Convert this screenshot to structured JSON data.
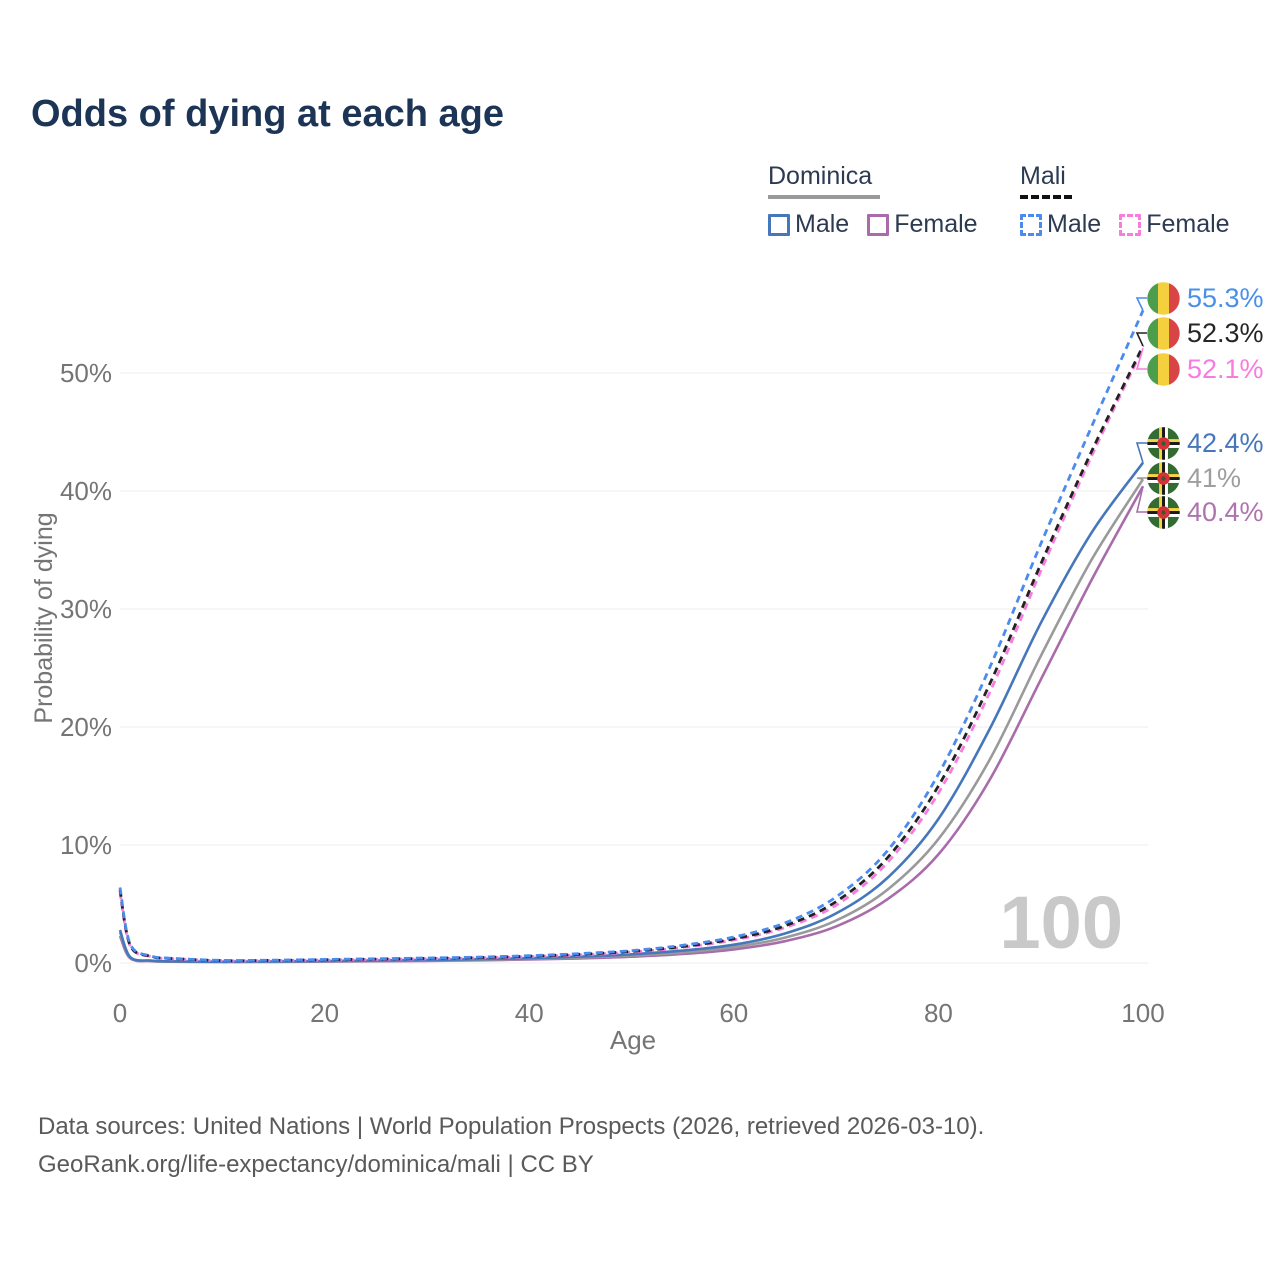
{
  "title": "Odds of dying at each age",
  "legend": {
    "groups": [
      {
        "label": "Dominica",
        "line_style": "solid",
        "line_color": "#9a9a9a",
        "items": [
          {
            "label": "Male",
            "color": "#4677bb",
            "dashed": false
          },
          {
            "label": "Female",
            "color": "#a96cab",
            "dashed": false
          }
        ]
      },
      {
        "label": "Mali",
        "line_style": "dashed",
        "line_color": "#111111",
        "items": [
          {
            "label": "Male",
            "color": "#4b8bee",
            "dashed": true
          },
          {
            "label": "Female",
            "color": "#f87be0",
            "dashed": true
          }
        ]
      }
    ]
  },
  "chart_data": {
    "type": "line",
    "title": "Odds of dying at each age",
    "xlabel": "Age",
    "ylabel": "Probability of dying",
    "xlim": [
      0,
      100
    ],
    "ylim_pct": [
      0,
      57
    ],
    "grid": true,
    "x_ticks": [
      {
        "value": 0,
        "label": "0"
      },
      {
        "value": 20,
        "label": "20"
      },
      {
        "value": 40,
        "label": "40"
      },
      {
        "value": 60,
        "label": "60"
      },
      {
        "value": 80,
        "label": "80"
      },
      {
        "value": 100,
        "label": "100"
      }
    ],
    "y_ticks": [
      {
        "value": 0,
        "label": "0%"
      },
      {
        "value": 10,
        "label": "10%"
      },
      {
        "value": 20,
        "label": "20%"
      },
      {
        "value": 30,
        "label": "30%"
      },
      {
        "value": 40,
        "label": "40%"
      },
      {
        "value": 50,
        "label": "50%"
      }
    ],
    "x": [
      0,
      1,
      3,
      5,
      10,
      15,
      20,
      25,
      30,
      35,
      40,
      45,
      50,
      55,
      60,
      65,
      70,
      75,
      80,
      85,
      90,
      95,
      100
    ],
    "series": [
      {
        "id": "dominica-female",
        "name": "Dominica Female",
        "color": "#a96cab",
        "dashed": false,
        "end_value_pct": 40.4,
        "values_pct": [
          2.3,
          0.4,
          0.16,
          0.11,
          0.08,
          0.09,
          0.12,
          0.15,
          0.18,
          0.23,
          0.3,
          0.39,
          0.53,
          0.76,
          1.15,
          1.85,
          3.1,
          5.4,
          9.2,
          15.5,
          24.0,
          32.5,
          40.4
        ]
      },
      {
        "id": "dominica",
        "name": "Dominica",
        "color": "#9a9a9a",
        "dashed": false,
        "end_value_pct": 41,
        "values_pct": [
          2.6,
          0.45,
          0.18,
          0.13,
          0.1,
          0.11,
          0.14,
          0.18,
          0.22,
          0.27,
          0.35,
          0.46,
          0.63,
          0.9,
          1.35,
          2.15,
          3.6,
          6.2,
          10.5,
          17.2,
          26.0,
          34.2,
          41.0
        ]
      },
      {
        "id": "dominica-male",
        "name": "Dominica Male",
        "color": "#4677bb",
        "dashed": false,
        "end_value_pct": 42.4,
        "values_pct": [
          2.8,
          0.5,
          0.2,
          0.14,
          0.11,
          0.13,
          0.17,
          0.21,
          0.26,
          0.32,
          0.41,
          0.54,
          0.74,
          1.05,
          1.55,
          2.5,
          4.2,
          7.2,
          12.2,
          19.8,
          28.8,
          36.5,
          42.4
        ]
      },
      {
        "id": "mali-female",
        "name": "Mali Female",
        "color": "#f87be0",
        "dashed": true,
        "end_value_pct": 52.1,
        "values_pct": [
          6.0,
          1.45,
          0.55,
          0.36,
          0.19,
          0.2,
          0.25,
          0.3,
          0.36,
          0.43,
          0.53,
          0.69,
          0.92,
          1.32,
          1.95,
          3.0,
          4.9,
          8.5,
          14.4,
          22.9,
          33.2,
          43.0,
          52.1
        ]
      },
      {
        "id": "mali",
        "name": "Mali",
        "color": "#222222",
        "dashed": true,
        "end_value_pct": 52.3,
        "values_pct": [
          6.2,
          1.5,
          0.57,
          0.38,
          0.2,
          0.22,
          0.27,
          0.33,
          0.39,
          0.46,
          0.57,
          0.74,
          0.98,
          1.4,
          2.05,
          3.15,
          5.2,
          8.9,
          15.0,
          23.6,
          33.8,
          43.4,
          52.3
        ]
      },
      {
        "id": "mali-male",
        "name": "Mali Male",
        "color": "#4b8bee",
        "dashed": true,
        "end_value_pct": 55.3,
        "values_pct": [
          6.4,
          1.6,
          0.6,
          0.4,
          0.22,
          0.24,
          0.3,
          0.36,
          0.42,
          0.5,
          0.62,
          0.8,
          1.05,
          1.5,
          2.2,
          3.4,
          5.6,
          9.5,
          16.0,
          25.0,
          35.5,
          45.5,
          55.3
        ]
      }
    ],
    "end_labels": [
      {
        "series": "mali-male",
        "text": "55.3%",
        "color": "#4a90e8",
        "flag": "mali"
      },
      {
        "series": "mali",
        "text": "52.3%",
        "color": "#262626",
        "flag": "mali"
      },
      {
        "series": "mali-female",
        "text": "52.1%",
        "color": "#f87be0",
        "flag": "mali"
      },
      {
        "series": "dominica-male",
        "text": "42.4%",
        "color": "#4677bb",
        "flag": "dominica"
      },
      {
        "series": "dominica",
        "text": "41%",
        "color": "#9e9e9e",
        "flag": "dominica"
      },
      {
        "series": "dominica-female",
        "text": "40.4%",
        "color": "#ad74ad",
        "flag": "dominica"
      }
    ],
    "legend_position": "top-right",
    "watermark": "100"
  },
  "flag_colors": {
    "mali": {
      "green": "#4c9e4c",
      "gold": "#f4d03f",
      "red": "#d94545"
    },
    "dominica": {
      "green": "#336b33",
      "yellow": "#f5d547",
      "black": "#1a1a1a",
      "white": "#ffffff",
      "red": "#d83038",
      "parrot": "#2f5d2f"
    }
  },
  "footer": {
    "line1": "Data sources: United Nations | World Population Prospects (2026, retrieved 2026-03-10).",
    "line2": "GeoRank.org/life-expectancy/dominica/mali | CC BY"
  }
}
